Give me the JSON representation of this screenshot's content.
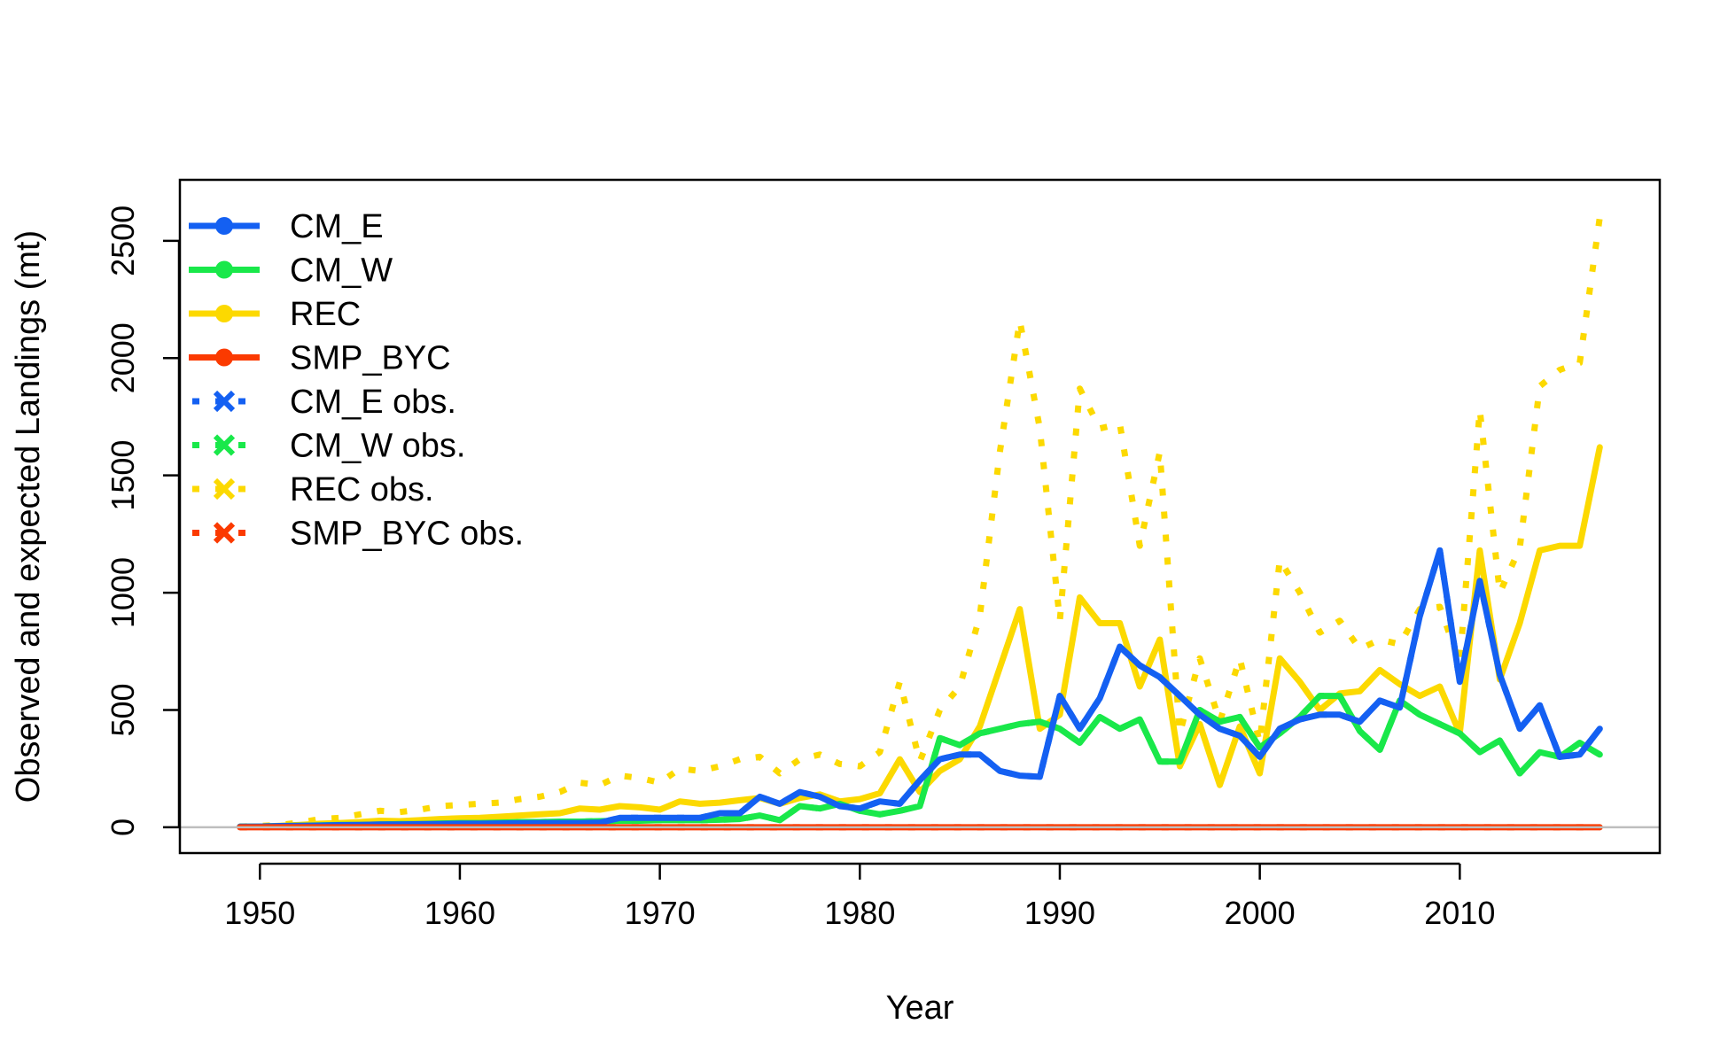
{
  "chart_data": {
    "type": "line",
    "title": "",
    "xlabel": "Year",
    "ylabel": "Observed and expected Landings (mt)",
    "xlim": [
      1946,
      2020
    ],
    "ylim": [
      -110,
      2760
    ],
    "xticks": [
      1950,
      1960,
      1970,
      1980,
      1990,
      2000,
      2010
    ],
    "yticks": [
      0,
      500,
      1000,
      1500,
      2000,
      2500
    ],
    "zero_line_color": "#bebebe",
    "grid": false,
    "legend_position": "top-left",
    "legend": [
      {
        "label": "CM_E",
        "color": "#1460f2",
        "style": "solid",
        "marker": "dot"
      },
      {
        "label": "CM_W",
        "color": "#19e84a",
        "style": "solid",
        "marker": "dot"
      },
      {
        "label": "REC",
        "color": "#fcd900",
        "style": "solid",
        "marker": "dot"
      },
      {
        "label": "SMP_BYC",
        "color": "#fb3a00",
        "style": "solid",
        "marker": "dot"
      },
      {
        "label": "CM_E obs.",
        "color": "#1460f2",
        "style": "dotted",
        "marker": "x"
      },
      {
        "label": "CM_W obs.",
        "color": "#19e84a",
        "style": "dotted",
        "marker": "x"
      },
      {
        "label": "REC obs.",
        "color": "#fcd900",
        "style": "dotted",
        "marker": "x"
      },
      {
        "label": "SMP_BYC obs.",
        "color": "#fb3a00",
        "style": "dotted",
        "marker": "x"
      }
    ],
    "x": [
      1949,
      1950,
      1951,
      1952,
      1953,
      1954,
      1955,
      1956,
      1957,
      1958,
      1959,
      1960,
      1961,
      1962,
      1963,
      1964,
      1965,
      1966,
      1967,
      1968,
      1969,
      1970,
      1971,
      1972,
      1973,
      1974,
      1975,
      1976,
      1977,
      1978,
      1979,
      1980,
      1981,
      1982,
      1983,
      1984,
      1985,
      1986,
      1987,
      1988,
      1989,
      1990,
      1991,
      1992,
      1993,
      1994,
      1995,
      1996,
      1997,
      1998,
      1999,
      2000,
      2001,
      2002,
      2003,
      2004,
      2005,
      2006,
      2007,
      2008,
      2009,
      2010,
      2011,
      2012,
      2013,
      2014,
      2015,
      2016,
      2017
    ],
    "series": [
      {
        "name": "REC obs.",
        "color": "#fcd900",
        "style": "dotted",
        "values": [
          3,
          5,
          10,
          20,
          35,
          40,
          55,
          70,
          65,
          75,
          90,
          95,
          100,
          105,
          120,
          130,
          150,
          190,
          180,
          220,
          210,
          190,
          250,
          240,
          260,
          290,
          300,
          230,
          290,
          310,
          270,
          260,
          320,
          620,
          280,
          500,
          600,
          900,
          1600,
          2160,
          1700,
          880,
          1870,
          1700,
          1720,
          1200,
          1600,
          400,
          720,
          450,
          720,
          360,
          1140,
          1000,
          830,
          880,
          760,
          800,
          780,
          930,
          940,
          700,
          1780,
          1000,
          1190,
          1880,
          1950,
          1980,
          2600
        ]
      },
      {
        "name": "CM_W obs.",
        "color": "#19e84a",
        "style": "dotted",
        "values": [
          2,
          3,
          5,
          6,
          8,
          10,
          10,
          12,
          14,
          14,
          16,
          18,
          18,
          20,
          22,
          22,
          24,
          24,
          26,
          28,
          28,
          30,
          30,
          30,
          32,
          35,
          50,
          30,
          90,
          80,
          100,
          70,
          55,
          70,
          90,
          380,
          350,
          400,
          420,
          440,
          450,
          420,
          360,
          470,
          420,
          460,
          280,
          280,
          500,
          450,
          470,
          340,
          400,
          470,
          560,
          560,
          410,
          330,
          540,
          480,
          440,
          400,
          320,
          370,
          230,
          320,
          300,
          360,
          310
        ]
      },
      {
        "name": "CM_E obs.",
        "color": "#1460f2",
        "style": "dotted",
        "values": [
          2,
          3,
          5,
          6,
          7,
          9,
          10,
          12,
          12,
          13,
          14,
          15,
          15,
          16,
          17,
          18,
          18,
          18,
          20,
          40,
          40,
          40,
          40,
          40,
          60,
          60,
          130,
          100,
          150,
          130,
          90,
          80,
          110,
          100,
          200,
          290,
          310,
          310,
          240,
          220,
          215,
          560,
          420,
          550,
          770,
          690,
          640,
          560,
          480,
          420,
          390,
          300,
          420,
          460,
          480,
          480,
          450,
          540,
          510,
          900,
          1180,
          620,
          1050,
          650,
          420,
          520,
          300,
          310,
          420
        ]
      },
      {
        "name": "SMP_BYC obs.",
        "color": "#fb3a00",
        "style": "dotted",
        "values": [
          0,
          0,
          0,
          0,
          0,
          0,
          0,
          0,
          0,
          0,
          0,
          0,
          0,
          0,
          0,
          0,
          0,
          0,
          0,
          0,
          0,
          0,
          0,
          0,
          0,
          0,
          0,
          0,
          0,
          0,
          0,
          0,
          0,
          0,
          0,
          0,
          0,
          0,
          0,
          0,
          0,
          0,
          0,
          0,
          0,
          0,
          0,
          0,
          0,
          0,
          0,
          0,
          0,
          0,
          0,
          0,
          0,
          0,
          0,
          0,
          0,
          0,
          0,
          0,
          0,
          0,
          0,
          0,
          0
        ]
      },
      {
        "name": "REC",
        "color": "#fcd900",
        "style": "solid",
        "values": [
          2,
          3,
          6,
          10,
          15,
          18,
          22,
          28,
          26,
          30,
          35,
          38,
          40,
          45,
          50,
          55,
          60,
          80,
          75,
          90,
          85,
          75,
          110,
          100,
          105,
          115,
          125,
          100,
          125,
          140,
          110,
          120,
          145,
          290,
          150,
          240,
          290,
          430,
          680,
          930,
          420,
          480,
          980,
          870,
          870,
          600,
          800,
          260,
          440,
          180,
          430,
          230,
          720,
          620,
          500,
          570,
          580,
          670,
          610,
          560,
          600,
          400,
          1180,
          630,
          870,
          1180,
          1200,
          1200,
          1620
        ]
      },
      {
        "name": "CM_W",
        "color": "#19e84a",
        "style": "solid",
        "values": [
          2,
          3,
          5,
          6,
          8,
          10,
          10,
          12,
          14,
          14,
          16,
          18,
          18,
          20,
          22,
          22,
          24,
          24,
          26,
          28,
          28,
          30,
          30,
          30,
          32,
          35,
          50,
          30,
          90,
          80,
          100,
          70,
          55,
          70,
          90,
          380,
          350,
          400,
          420,
          440,
          450,
          420,
          360,
          470,
          420,
          460,
          280,
          280,
          500,
          450,
          470,
          340,
          400,
          470,
          560,
          560,
          410,
          330,
          540,
          480,
          440,
          400,
          320,
          370,
          230,
          320,
          300,
          360,
          310
        ]
      },
      {
        "name": "CM_E",
        "color": "#1460f2",
        "style": "solid",
        "values": [
          2,
          3,
          5,
          6,
          7,
          9,
          10,
          12,
          12,
          13,
          14,
          15,
          15,
          16,
          17,
          18,
          18,
          18,
          20,
          40,
          40,
          40,
          40,
          40,
          60,
          60,
          130,
          100,
          150,
          130,
          90,
          80,
          110,
          100,
          200,
          290,
          310,
          310,
          240,
          220,
          215,
          560,
          420,
          550,
          770,
          690,
          640,
          560,
          480,
          420,
          390,
          300,
          420,
          460,
          480,
          480,
          450,
          540,
          510,
          900,
          1180,
          620,
          1050,
          650,
          420,
          520,
          300,
          310,
          420
        ]
      },
      {
        "name": "SMP_BYC",
        "color": "#fb3a00",
        "style": "solid",
        "values": [
          0,
          0,
          0,
          0,
          0,
          0,
          0,
          0,
          0,
          0,
          0,
          0,
          0,
          0,
          0,
          0,
          0,
          0,
          0,
          0,
          0,
          0,
          0,
          0,
          0,
          0,
          0,
          0,
          0,
          0,
          0,
          0,
          0,
          0,
          0,
          0,
          0,
          0,
          0,
          0,
          0,
          0,
          0,
          0,
          0,
          0,
          0,
          0,
          0,
          0,
          0,
          0,
          0,
          0,
          0,
          0,
          0,
          0,
          0,
          0,
          0,
          0,
          0,
          0,
          0,
          0,
          0,
          0,
          0
        ]
      }
    ]
  }
}
